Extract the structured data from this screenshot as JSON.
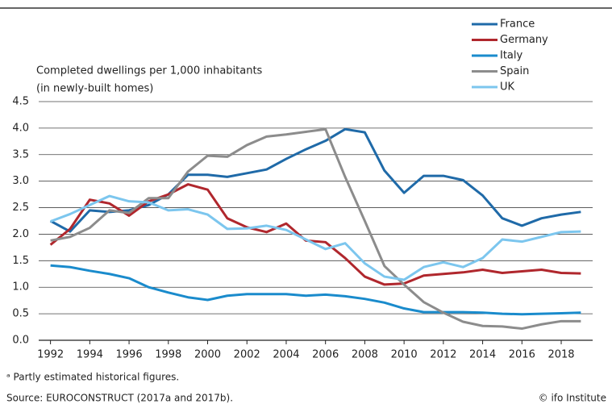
{
  "chart_data": {
    "type": "line",
    "title": "Completed dwellings per 1,000 inhabitants",
    "subtitle": "(in newly-built homes)",
    "footnote": "ᵃ Partly estimated historical figures.",
    "source": "Source: EUROCONSTRUCT (2017a and 2017b).",
    "credit": "© ifo Institute",
    "x": [
      1992,
      1993,
      1994,
      1995,
      1996,
      1997,
      1998,
      1999,
      2000,
      2001,
      2002,
      2003,
      2004,
      2005,
      2006,
      2007,
      2008,
      2009,
      2010,
      2011,
      2012,
      2013,
      2014,
      2015,
      2016,
      2017,
      2018,
      2019
    ],
    "series": [
      {
        "name": "France",
        "color": "#1f6aa8",
        "values": [
          2.25,
          2.05,
          2.45,
          2.42,
          2.45,
          2.55,
          2.75,
          3.12,
          3.12,
          3.08,
          3.15,
          3.22,
          3.42,
          3.6,
          3.76,
          3.98,
          3.92,
          3.2,
          2.78,
          3.1,
          3.1,
          3.02,
          2.73,
          2.3,
          2.16,
          2.3,
          2.37,
          2.42
        ]
      },
      {
        "name": "Germany",
        "color": "#b0272d",
        "values": [
          1.8,
          2.1,
          2.65,
          2.58,
          2.35,
          2.62,
          2.75,
          2.94,
          2.84,
          2.3,
          2.13,
          2.04,
          2.2,
          1.88,
          1.85,
          1.55,
          1.2,
          1.05,
          1.07,
          1.22,
          1.25,
          1.28,
          1.33,
          1.27,
          1.3,
          1.33,
          1.27,
          1.26
        ]
      },
      {
        "name": "Italy",
        "color": "#1a8bcc",
        "values": [
          1.41,
          1.38,
          1.31,
          1.25,
          1.17,
          1.0,
          0.9,
          0.81,
          0.76,
          0.84,
          0.87,
          0.87,
          0.87,
          0.84,
          0.86,
          0.83,
          0.78,
          0.71,
          0.6,
          0.53,
          0.53,
          0.53,
          0.52,
          0.5,
          0.49,
          0.5,
          0.51,
          0.52
        ]
      },
      {
        "name": "Spain",
        "color": "#8c8c8c",
        "values": [
          1.88,
          1.95,
          2.12,
          2.45,
          2.4,
          2.68,
          2.68,
          3.18,
          3.48,
          3.46,
          3.68,
          3.84,
          3.88,
          3.93,
          3.98,
          3.08,
          2.25,
          1.4,
          1.05,
          0.72,
          0.52,
          0.35,
          0.27,
          0.26,
          0.22,
          0.3,
          0.36,
          0.36
        ]
      },
      {
        "name": "UK",
        "color": "#7cc6ee",
        "values": [
          2.24,
          2.38,
          2.55,
          2.72,
          2.62,
          2.6,
          2.45,
          2.47,
          2.37,
          2.1,
          2.11,
          2.16,
          2.08,
          1.9,
          1.72,
          1.83,
          1.45,
          1.2,
          1.14,
          1.38,
          1.47,
          1.38,
          1.55,
          1.9,
          1.86,
          1.95,
          2.04,
          2.05
        ]
      }
    ],
    "xlim": [
      1991.4,
      2019.6
    ],
    "xticks": [
      1992,
      1994,
      1996,
      1998,
      2000,
      2002,
      2004,
      2006,
      2008,
      2010,
      2012,
      2014,
      2016,
      2018
    ],
    "ylim": [
      0,
      4.5
    ],
    "yticks": [
      {
        "value": 0,
        "label": "0.0"
      },
      0.5,
      {
        "value": 1,
        "label": "1.0"
      },
      1.5,
      {
        "value": 2,
        "label": "2.0"
      },
      2.5,
      {
        "value": 3,
        "label": "3.0"
      },
      3.5,
      {
        "value": 4,
        "label": "4.0"
      },
      4.5
    ],
    "grid": true,
    "legend": "top-right"
  }
}
